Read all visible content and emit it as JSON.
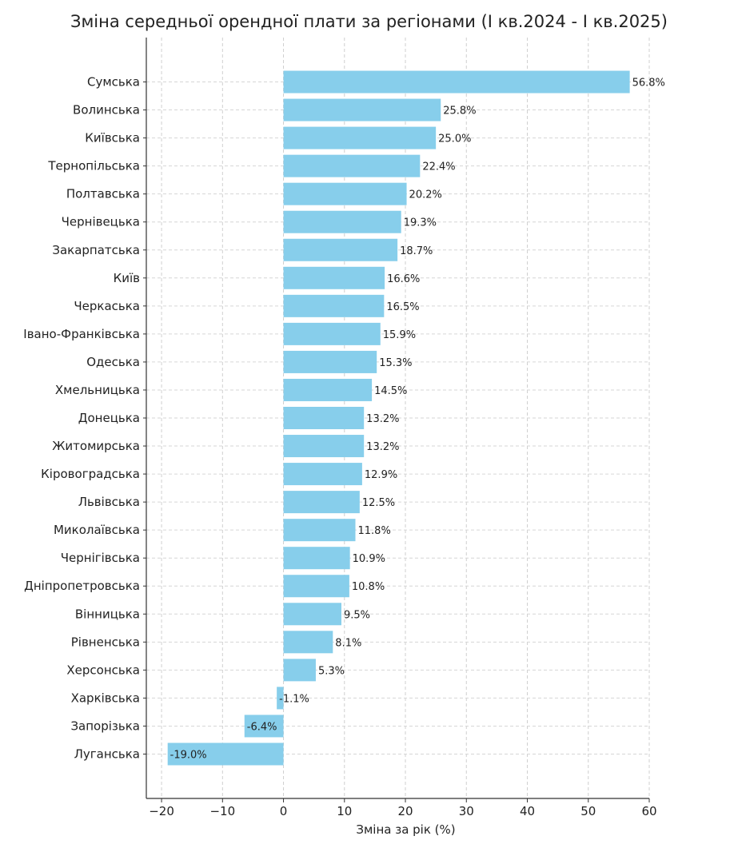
{
  "chart_data": {
    "type": "bar",
    "orientation": "horizontal",
    "title": "Зміна середньої орендної плати за регіонами (І кв.2024 - І кв.2025)",
    "xlabel": "Зміна за рік (%)",
    "ylabel": "",
    "xlim": [
      -22.5,
      60
    ],
    "xticks": [
      -20,
      -10,
      0,
      10,
      20,
      30,
      40,
      50,
      60
    ],
    "xtick_labels": [
      "−20",
      "−10",
      "0",
      "10",
      "20",
      "30",
      "40",
      "50",
      "60"
    ],
    "grid": true,
    "bar_color": "#87ceeb",
    "categories": [
      "Сумська",
      "Волинська",
      "Київська",
      "Тернопільська",
      "Полтавська",
      "Чернівецька",
      "Закарпатська",
      "Київ",
      "Черкаська",
      "Івано-Франківська",
      "Одеська",
      "Хмельницька",
      "Донецька",
      "Житомирська",
      "Кіровоградська",
      "Львівська",
      "Миколаївська",
      "Чернігівська",
      "Дніпропетровська",
      "Вінницька",
      "Рівненська",
      "Херсонська",
      "Харківська",
      "Запорізька",
      "Луганська"
    ],
    "values": [
      56.8,
      25.8,
      25.0,
      22.4,
      20.2,
      19.3,
      18.7,
      16.6,
      16.5,
      15.9,
      15.3,
      14.5,
      13.2,
      13.2,
      12.9,
      12.5,
      11.8,
      10.9,
      10.8,
      9.5,
      8.1,
      5.3,
      -1.1,
      -6.4,
      -19.0
    ],
    "data_labels": [
      "56.8%",
      "25.8%",
      "25.0%",
      "22.4%",
      "20.2%",
      "19.3%",
      "18.7%",
      "16.6%",
      "16.5%",
      "15.9%",
      "15.3%",
      "14.5%",
      "13.2%",
      "13.2%",
      "12.9%",
      "12.5%",
      "11.8%",
      "10.9%",
      "10.8%",
      "9.5%",
      "8.1%",
      "5.3%",
      "-1.1%",
      "-6.4%",
      "-19.0%"
    ]
  }
}
